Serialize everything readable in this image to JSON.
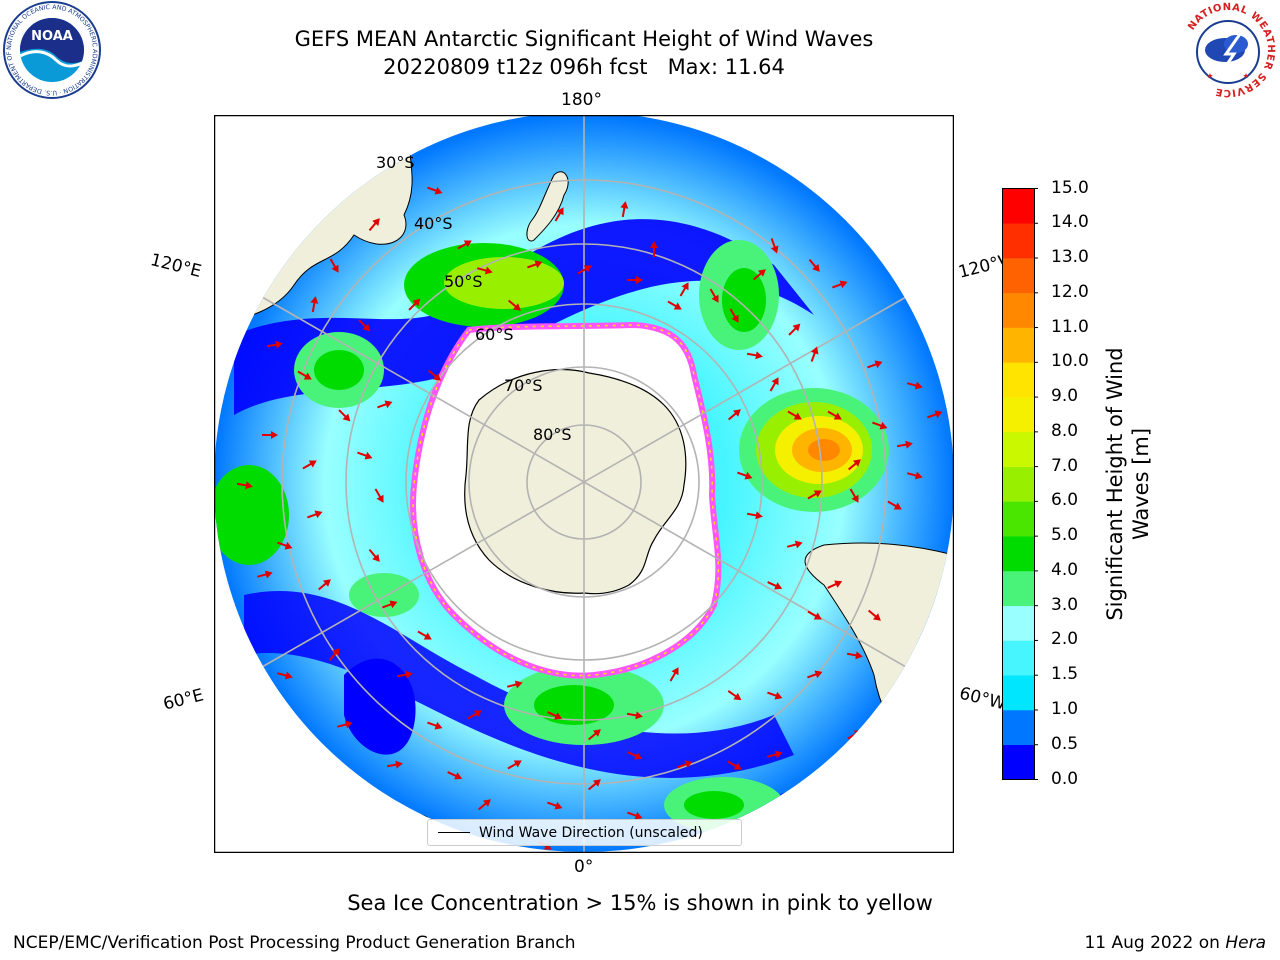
{
  "header": {
    "title_line1": "GEFS MEAN Antarctic Significant Height of Wind Waves",
    "title_line2": "20220809 t12z 096h fcst   Max: 11.64"
  },
  "logos": {
    "left": "NOAA",
    "left_ring_text": "NATIONAL OCEANIC AND ATMOSPHERIC ADMINISTRATION · U.S. DEPARTMENT OF COMMERCE",
    "right_ring_text": "NATIONAL WEATHER SERVICE"
  },
  "map": {
    "projection": "south-polar-stereographic",
    "longitude_labels": {
      "top": "180°",
      "bottom": "0°",
      "upper_left": "120°E",
      "upper_right": "120°W",
      "lower_left": "60°E",
      "lower_right": "60°W"
    },
    "latitude_labels": [
      "30°S",
      "40°S",
      "50°S",
      "60°S",
      "70°S",
      "80°S"
    ],
    "legend_label": "Wind Wave Direction (unscaled)",
    "vector_color": "#e00000",
    "land_color": "#efefdb",
    "grid_color": "#b3b3b3"
  },
  "colorbar": {
    "label": "Significant Height of Wind Waves [m]",
    "label_line1": "Significant Height of Wind",
    "label_line2": "Waves [m]",
    "ticks": [
      "0.0",
      "0.5",
      "1.0",
      "1.5",
      "2.0",
      "3.0",
      "4.0",
      "5.0",
      "6.0",
      "7.0",
      "8.0",
      "9.0",
      "10.0",
      "11.0",
      "12.0",
      "13.0",
      "14.0",
      "15.0"
    ],
    "colors": [
      "#0000ff",
      "#0077ff",
      "#00e6ff",
      "#46f5ff",
      "#99ffff",
      "#49f37a",
      "#00dc00",
      "#4ae600",
      "#98f000",
      "#caf800",
      "#f4f000",
      "#ffe400",
      "#ffb500",
      "#ff8800",
      "#ff6200",
      "#ff2f00",
      "#ff0000"
    ]
  },
  "footer": {
    "note": "Sea Ice Concentration > 15% is shown in pink to yellow",
    "credit_left": "NCEP/EMC/Verification Post Processing Product Generation Branch",
    "credit_right_date": "11 Aug 2022 on",
    "credit_right_host": "Hera"
  }
}
